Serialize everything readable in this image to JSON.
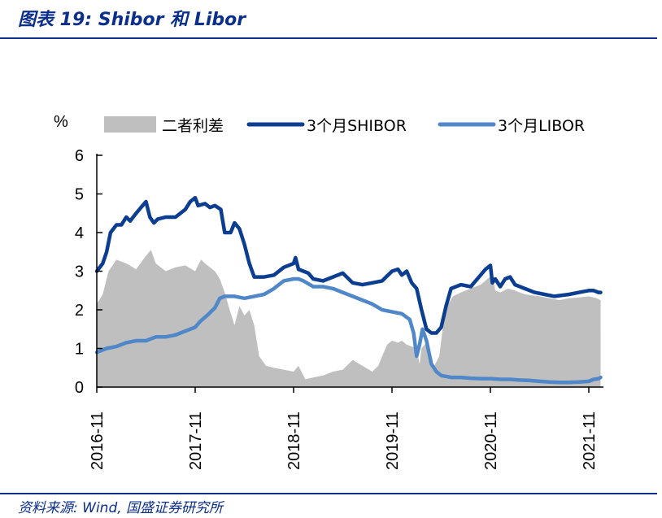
{
  "header": {
    "title": "图表 19: Shibor 和 Libor"
  },
  "footer": {
    "source": "资料来源: Wind, 国盛证券研究所"
  },
  "chart_data": {
    "type": "line",
    "unit_label": "%",
    "ylim": [
      0,
      6
    ],
    "yticks": [
      "0",
      "1",
      "2",
      "3",
      "4",
      "5",
      "6"
    ],
    "x_start": "2016-11",
    "x_end": "2021-12",
    "xticks": [
      "2016-11",
      "2017-11",
      "2018-11",
      "2019-11",
      "2020-11",
      "2021-11"
    ],
    "legend_placement": "top",
    "series": [
      {
        "name": "二者利差",
        "kind": "area",
        "color": "#bfbfbf",
        "points": [
          [
            0.0,
            2.15
          ],
          [
            0.06,
            2.4
          ],
          [
            0.12,
            3.0
          ],
          [
            0.2,
            3.3
          ],
          [
            0.3,
            3.2
          ],
          [
            0.4,
            3.05
          ],
          [
            0.5,
            3.4
          ],
          [
            0.55,
            3.55
          ],
          [
            0.6,
            3.2
          ],
          [
            0.7,
            3.0
          ],
          [
            0.8,
            3.1
          ],
          [
            0.9,
            3.15
          ],
          [
            1.0,
            3.0
          ],
          [
            1.06,
            3.3
          ],
          [
            1.1,
            3.2
          ],
          [
            1.2,
            3.0
          ],
          [
            1.25,
            2.8
          ],
          [
            1.3,
            2.45
          ],
          [
            1.35,
            2.0
          ],
          [
            1.4,
            1.6
          ],
          [
            1.45,
            2.1
          ],
          [
            1.5,
            1.85
          ],
          [
            1.55,
            2.0
          ],
          [
            1.6,
            1.6
          ],
          [
            1.65,
            0.8
          ],
          [
            1.72,
            0.55
          ],
          [
            1.8,
            0.5
          ],
          [
            1.9,
            0.45
          ],
          [
            2.0,
            0.4
          ],
          [
            2.05,
            0.55
          ],
          [
            2.12,
            0.2
          ],
          [
            2.2,
            0.25
          ],
          [
            2.3,
            0.3
          ],
          [
            2.4,
            0.4
          ],
          [
            2.5,
            0.45
          ],
          [
            2.6,
            0.7
          ],
          [
            2.7,
            0.55
          ],
          [
            2.8,
            0.4
          ],
          [
            2.86,
            0.55
          ],
          [
            2.9,
            0.8
          ],
          [
            2.95,
            1.1
          ],
          [
            3.0,
            1.2
          ],
          [
            3.06,
            1.15
          ],
          [
            3.1,
            1.2
          ],
          [
            3.15,
            1.1
          ],
          [
            3.2,
            1.05
          ],
          [
            3.25,
            1.0
          ],
          [
            3.28,
            0.6
          ],
          [
            3.3,
            1.0
          ],
          [
            3.35,
            1.15
          ],
          [
            3.38,
            0.75
          ],
          [
            3.43,
            0.55
          ],
          [
            3.48,
            0.8
          ],
          [
            3.52,
            1.6
          ],
          [
            3.56,
            2.1
          ],
          [
            3.62,
            2.35
          ],
          [
            3.7,
            2.45
          ],
          [
            3.8,
            2.55
          ],
          [
            3.9,
            2.65
          ],
          [
            3.97,
            2.8
          ],
          [
            4.02,
            2.9
          ],
          [
            4.05,
            2.5
          ],
          [
            4.1,
            2.45
          ],
          [
            4.18,
            2.55
          ],
          [
            4.25,
            2.5
          ],
          [
            4.35,
            2.4
          ],
          [
            4.5,
            2.35
          ],
          [
            4.6,
            2.3
          ],
          [
            4.7,
            2.25
          ],
          [
            4.8,
            2.3
          ],
          [
            4.9,
            2.32
          ],
          [
            5.0,
            2.35
          ],
          [
            5.08,
            2.3
          ],
          [
            5.12,
            2.25
          ]
        ]
      },
      {
        "name": "3个月SHIBOR",
        "kind": "line",
        "color": "#0b3d91",
        "points": [
          [
            0.0,
            3.0
          ],
          [
            0.06,
            3.2
          ],
          [
            0.1,
            3.5
          ],
          [
            0.14,
            4.0
          ],
          [
            0.2,
            4.2
          ],
          [
            0.25,
            4.2
          ],
          [
            0.3,
            4.4
          ],
          [
            0.34,
            4.3
          ],
          [
            0.4,
            4.5
          ],
          [
            0.45,
            4.65
          ],
          [
            0.5,
            4.8
          ],
          [
            0.54,
            4.4
          ],
          [
            0.58,
            4.25
          ],
          [
            0.62,
            4.35
          ],
          [
            0.7,
            4.4
          ],
          [
            0.8,
            4.4
          ],
          [
            0.9,
            4.6
          ],
          [
            0.95,
            4.8
          ],
          [
            1.0,
            4.9
          ],
          [
            1.03,
            4.7
          ],
          [
            1.1,
            4.75
          ],
          [
            1.15,
            4.65
          ],
          [
            1.2,
            4.7
          ],
          [
            1.26,
            4.6
          ],
          [
            1.3,
            4.0
          ],
          [
            1.36,
            4.0
          ],
          [
            1.4,
            4.25
          ],
          [
            1.45,
            4.1
          ],
          [
            1.5,
            3.7
          ],
          [
            1.55,
            3.2
          ],
          [
            1.6,
            2.85
          ],
          [
            1.7,
            2.85
          ],
          [
            1.8,
            2.9
          ],
          [
            1.9,
            3.1
          ],
          [
            2.0,
            3.2
          ],
          [
            2.02,
            3.35
          ],
          [
            2.05,
            3.05
          ],
          [
            2.15,
            2.95
          ],
          [
            2.2,
            2.8
          ],
          [
            2.3,
            2.75
          ],
          [
            2.4,
            2.85
          ],
          [
            2.5,
            2.95
          ],
          [
            2.6,
            2.7
          ],
          [
            2.7,
            2.65
          ],
          [
            2.8,
            2.7
          ],
          [
            2.9,
            2.75
          ],
          [
            3.0,
            3.0
          ],
          [
            3.06,
            3.05
          ],
          [
            3.1,
            2.9
          ],
          [
            3.15,
            3.0
          ],
          [
            3.2,
            2.7
          ],
          [
            3.25,
            2.55
          ],
          [
            3.3,
            2.0
          ],
          [
            3.35,
            1.5
          ],
          [
            3.4,
            1.4
          ],
          [
            3.45,
            1.4
          ],
          [
            3.5,
            1.55
          ],
          [
            3.55,
            2.1
          ],
          [
            3.6,
            2.55
          ],
          [
            3.7,
            2.65
          ],
          [
            3.8,
            2.6
          ],
          [
            3.9,
            2.9
          ],
          [
            3.95,
            3.05
          ],
          [
            4.0,
            3.15
          ],
          [
            4.02,
            2.7
          ],
          [
            4.05,
            2.8
          ],
          [
            4.1,
            2.6
          ],
          [
            4.15,
            2.8
          ],
          [
            4.2,
            2.85
          ],
          [
            4.25,
            2.65
          ],
          [
            4.35,
            2.55
          ],
          [
            4.45,
            2.45
          ],
          [
            4.55,
            2.4
          ],
          [
            4.65,
            2.35
          ],
          [
            4.8,
            2.4
          ],
          [
            4.9,
            2.45
          ],
          [
            5.0,
            2.5
          ],
          [
            5.05,
            2.5
          ],
          [
            5.1,
            2.45
          ],
          [
            5.12,
            2.45
          ]
        ]
      },
      {
        "name": "3个月LIBOR",
        "kind": "line",
        "color": "#4f87c9",
        "points": [
          [
            0.0,
            0.9
          ],
          [
            0.05,
            0.95
          ],
          [
            0.1,
            1.0
          ],
          [
            0.2,
            1.05
          ],
          [
            0.3,
            1.15
          ],
          [
            0.4,
            1.2
          ],
          [
            0.5,
            1.2
          ],
          [
            0.6,
            1.3
          ],
          [
            0.7,
            1.3
          ],
          [
            0.8,
            1.35
          ],
          [
            0.9,
            1.45
          ],
          [
            1.0,
            1.55
          ],
          [
            1.05,
            1.7
          ],
          [
            1.12,
            1.85
          ],
          [
            1.2,
            2.05
          ],
          [
            1.25,
            2.3
          ],
          [
            1.3,
            2.35
          ],
          [
            1.4,
            2.35
          ],
          [
            1.5,
            2.3
          ],
          [
            1.6,
            2.35
          ],
          [
            1.7,
            2.4
          ],
          [
            1.8,
            2.55
          ],
          [
            1.9,
            2.75
          ],
          [
            2.0,
            2.8
          ],
          [
            2.05,
            2.8
          ],
          [
            2.1,
            2.75
          ],
          [
            2.2,
            2.6
          ],
          [
            2.3,
            2.6
          ],
          [
            2.4,
            2.55
          ],
          [
            2.5,
            2.45
          ],
          [
            2.6,
            2.35
          ],
          [
            2.7,
            2.25
          ],
          [
            2.8,
            2.15
          ],
          [
            2.9,
            2.0
          ],
          [
            3.0,
            1.95
          ],
          [
            3.1,
            1.9
          ],
          [
            3.18,
            1.75
          ],
          [
            3.22,
            1.4
          ],
          [
            3.25,
            0.8
          ],
          [
            3.28,
            1.1
          ],
          [
            3.31,
            1.5
          ],
          [
            3.35,
            1.2
          ],
          [
            3.4,
            0.6
          ],
          [
            3.45,
            0.4
          ],
          [
            3.5,
            0.3
          ],
          [
            3.6,
            0.25
          ],
          [
            3.7,
            0.25
          ],
          [
            3.8,
            0.23
          ],
          [
            3.9,
            0.22
          ],
          [
            4.0,
            0.22
          ],
          [
            4.1,
            0.2
          ],
          [
            4.2,
            0.2
          ],
          [
            4.3,
            0.18
          ],
          [
            4.4,
            0.17
          ],
          [
            4.5,
            0.15
          ],
          [
            4.6,
            0.13
          ],
          [
            4.7,
            0.12
          ],
          [
            4.8,
            0.12
          ],
          [
            4.9,
            0.13
          ],
          [
            5.0,
            0.15
          ],
          [
            5.05,
            0.2
          ],
          [
            5.1,
            0.22
          ],
          [
            5.12,
            0.25
          ]
        ]
      }
    ]
  }
}
